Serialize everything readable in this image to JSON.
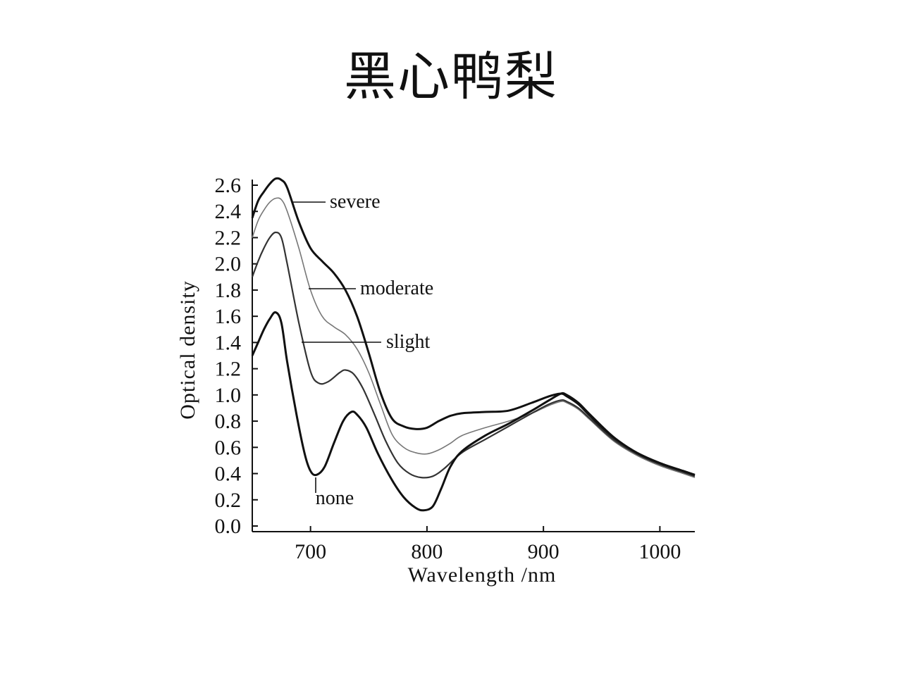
{
  "title": "黑心鸭梨",
  "chart_data": {
    "type": "line",
    "xlabel": "Wavelength  /nm",
    "ylabel": "Optical density",
    "xlim": [
      650,
      1030
    ],
    "ylim": [
      0.0,
      2.6
    ],
    "xticks": [
      700,
      800,
      900,
      1000
    ],
    "yticks": [
      0.0,
      0.2,
      0.4,
      0.6,
      0.8,
      1.0,
      1.2,
      1.4,
      1.6,
      1.8,
      2.0,
      2.2,
      2.4,
      2.6
    ],
    "grid": false,
    "series": [
      {
        "name": "severe",
        "color": "#111111",
        "points": [
          [
            650,
            2.35
          ],
          [
            655,
            2.48
          ],
          [
            660,
            2.55
          ],
          [
            665,
            2.61
          ],
          [
            670,
            2.65
          ],
          [
            675,
            2.64
          ],
          [
            680,
            2.58
          ],
          [
            690,
            2.32
          ],
          [
            700,
            2.12
          ],
          [
            710,
            2.02
          ],
          [
            720,
            1.93
          ],
          [
            730,
            1.8
          ],
          [
            740,
            1.6
          ],
          [
            750,
            1.32
          ],
          [
            760,
            1.02
          ],
          [
            770,
            0.82
          ],
          [
            780,
            0.76
          ],
          [
            790,
            0.74
          ],
          [
            800,
            0.75
          ],
          [
            810,
            0.8
          ],
          [
            820,
            0.84
          ],
          [
            830,
            0.86
          ],
          [
            850,
            0.87
          ],
          [
            870,
            0.88
          ],
          [
            890,
            0.94
          ],
          [
            905,
            0.99
          ],
          [
            915,
            1.01
          ],
          [
            920,
            0.99
          ],
          [
            930,
            0.93
          ],
          [
            940,
            0.84
          ],
          [
            960,
            0.67
          ],
          [
            980,
            0.56
          ],
          [
            1000,
            0.48
          ],
          [
            1020,
            0.42
          ],
          [
            1030,
            0.39
          ]
        ]
      },
      {
        "name": "moderate",
        "color": "#777777",
        "points": [
          [
            650,
            2.2
          ],
          [
            655,
            2.33
          ],
          [
            660,
            2.41
          ],
          [
            665,
            2.47
          ],
          [
            670,
            2.5
          ],
          [
            675,
            2.49
          ],
          [
            680,
            2.4
          ],
          [
            690,
            2.12
          ],
          [
            700,
            1.8
          ],
          [
            710,
            1.6
          ],
          [
            720,
            1.52
          ],
          [
            730,
            1.46
          ],
          [
            740,
            1.35
          ],
          [
            750,
            1.17
          ],
          [
            760,
            0.93
          ],
          [
            770,
            0.7
          ],
          [
            780,
            0.6
          ],
          [
            790,
            0.56
          ],
          [
            800,
            0.55
          ],
          [
            810,
            0.58
          ],
          [
            820,
            0.63
          ],
          [
            830,
            0.69
          ],
          [
            850,
            0.75
          ],
          [
            870,
            0.8
          ],
          [
            890,
            0.86
          ],
          [
            905,
            0.92
          ],
          [
            915,
            0.95
          ],
          [
            920,
            0.94
          ],
          [
            930,
            0.89
          ],
          [
            940,
            0.81
          ],
          [
            960,
            0.65
          ],
          [
            980,
            0.54
          ],
          [
            1000,
            0.46
          ],
          [
            1020,
            0.4
          ],
          [
            1030,
            0.37
          ]
        ]
      },
      {
        "name": "slight",
        "color": "#333333",
        "points": [
          [
            650,
            1.9
          ],
          [
            655,
            2.02
          ],
          [
            660,
            2.12
          ],
          [
            665,
            2.2
          ],
          [
            670,
            2.24
          ],
          [
            675,
            2.2
          ],
          [
            680,
            2.0
          ],
          [
            690,
            1.55
          ],
          [
            700,
            1.18
          ],
          [
            707,
            1.09
          ],
          [
            715,
            1.1
          ],
          [
            725,
            1.17
          ],
          [
            730,
            1.19
          ],
          [
            737,
            1.16
          ],
          [
            745,
            1.05
          ],
          [
            755,
            0.85
          ],
          [
            765,
            0.64
          ],
          [
            775,
            0.48
          ],
          [
            785,
            0.4
          ],
          [
            795,
            0.37
          ],
          [
            805,
            0.38
          ],
          [
            815,
            0.44
          ],
          [
            830,
            0.56
          ],
          [
            850,
            0.66
          ],
          [
            870,
            0.76
          ],
          [
            890,
            0.86
          ],
          [
            905,
            0.93
          ],
          [
            915,
            0.96
          ],
          [
            920,
            0.95
          ],
          [
            930,
            0.9
          ],
          [
            940,
            0.82
          ],
          [
            960,
            0.66
          ],
          [
            980,
            0.55
          ],
          [
            1000,
            0.47
          ],
          [
            1020,
            0.41
          ],
          [
            1030,
            0.38
          ]
        ]
      },
      {
        "name": "none",
        "color": "#111111",
        "points": [
          [
            650,
            1.3
          ],
          [
            655,
            1.4
          ],
          [
            660,
            1.5
          ],
          [
            665,
            1.58
          ],
          [
            670,
            1.63
          ],
          [
            675,
            1.55
          ],
          [
            680,
            1.25
          ],
          [
            688,
            0.85
          ],
          [
            695,
            0.55
          ],
          [
            700,
            0.42
          ],
          [
            705,
            0.39
          ],
          [
            712,
            0.45
          ],
          [
            720,
            0.63
          ],
          [
            728,
            0.8
          ],
          [
            735,
            0.87
          ],
          [
            740,
            0.85
          ],
          [
            748,
            0.75
          ],
          [
            758,
            0.55
          ],
          [
            770,
            0.35
          ],
          [
            780,
            0.22
          ],
          [
            790,
            0.14
          ],
          [
            797,
            0.12
          ],
          [
            805,
            0.15
          ],
          [
            812,
            0.28
          ],
          [
            820,
            0.45
          ],
          [
            830,
            0.57
          ],
          [
            850,
            0.69
          ],
          [
            870,
            0.78
          ],
          [
            890,
            0.88
          ],
          [
            905,
            0.96
          ],
          [
            915,
            1.01
          ],
          [
            920,
            1.0
          ],
          [
            930,
            0.94
          ],
          [
            940,
            0.85
          ],
          [
            960,
            0.68
          ],
          [
            980,
            0.56
          ],
          [
            1000,
            0.48
          ],
          [
            1020,
            0.42
          ],
          [
            1030,
            0.39
          ]
        ]
      }
    ],
    "annotations": [
      {
        "text": "severe",
        "target_series": "severe",
        "at_x": 675
      },
      {
        "text": "moderate",
        "target_series": "moderate",
        "at_x": 700
      },
      {
        "text": "slight",
        "target_series": "slight",
        "at_x": 690
      },
      {
        "text": "none",
        "target_series": "none",
        "at_x": 705
      }
    ]
  }
}
